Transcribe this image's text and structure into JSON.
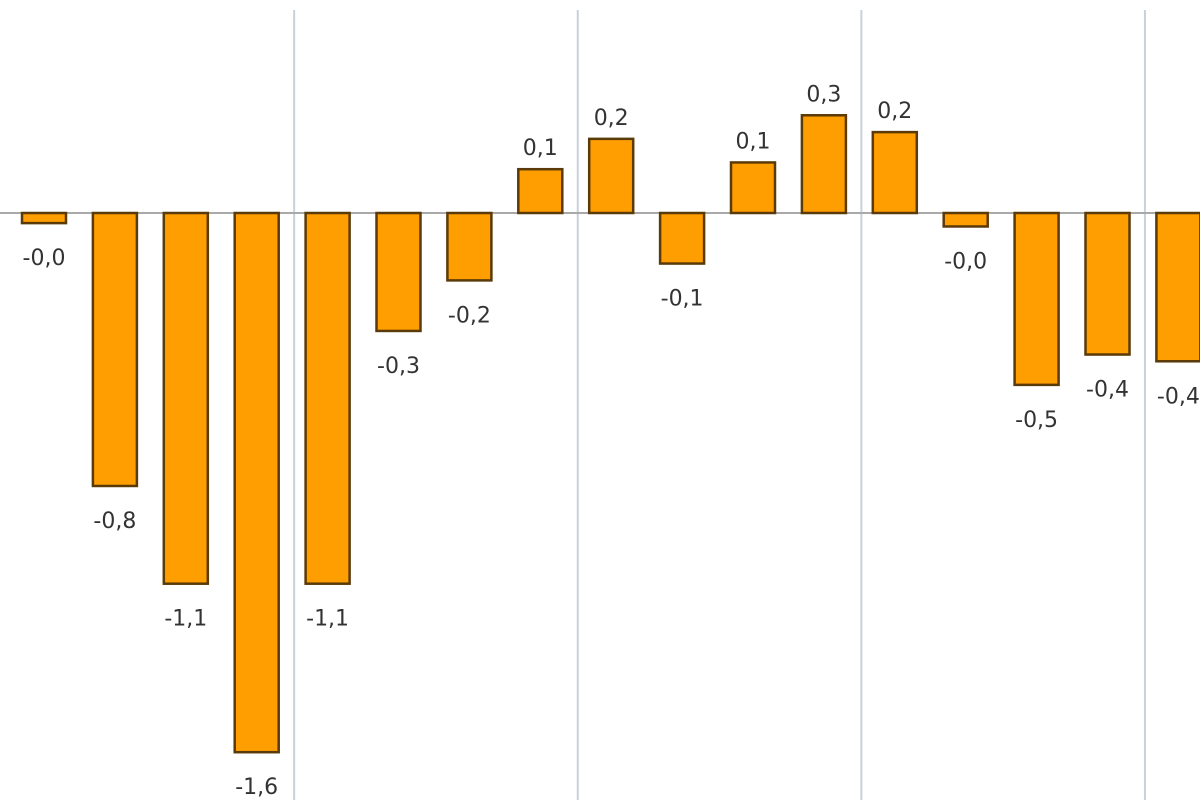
{
  "chart_data": {
    "type": "bar",
    "title": "",
    "xlabel": "",
    "ylabel": "",
    "ylim": [
      -1.75,
      0.63
    ],
    "grid": {
      "vertical": true,
      "horizontal": false,
      "vertical_every_n_bars": 4
    },
    "legend": "none",
    "colors": {
      "bar_fill": "#FF9E00",
      "bar_edge": "#5a3a08",
      "grid": "#c9d0dc",
      "zero_line": "#a9a9a9",
      "label": "#333333"
    },
    "values": [
      -0.03,
      -0.81,
      -1.1,
      -1.6,
      -1.1,
      -0.35,
      -0.2,
      0.13,
      0.22,
      -0.15,
      0.15,
      0.29,
      0.24,
      -0.04,
      -0.51,
      -0.42,
      -0.44
    ],
    "data_labels": [
      "-0,0",
      "-0,8",
      "-1,1",
      "-1,6",
      "-1,1",
      "-0,3",
      "-0,2",
      "0,1",
      "0,2",
      "-0,1",
      "0,1",
      "0,3",
      "0,2",
      "-0,0",
      "-0,5",
      "-0,4",
      "-0,4"
    ]
  }
}
